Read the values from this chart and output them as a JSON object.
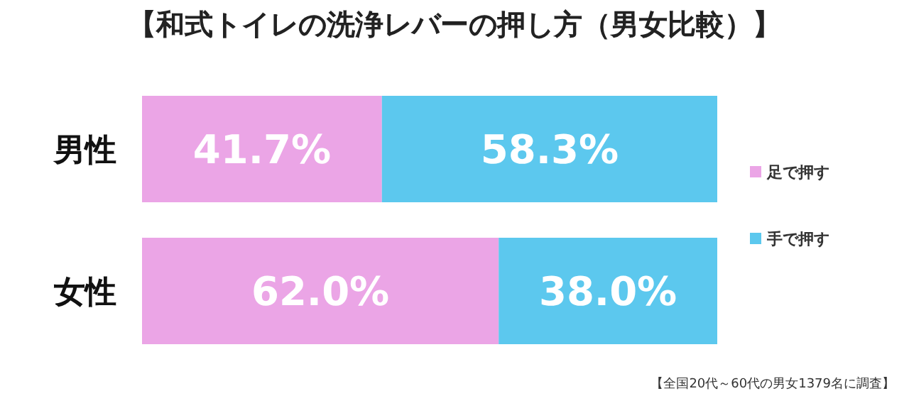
{
  "chart_data": {
    "type": "bar",
    "orientation": "horizontal",
    "stacked": true,
    "title": "【和式トイレの洗浄レバーの押し方（男女比較）】",
    "categories": [
      "男性",
      "女性"
    ],
    "series": [
      {
        "name": "足で押す",
        "color": "#eba5e6",
        "values": [
          41.7,
          62.0
        ],
        "value_labels": [
          "41.7%",
          "62.0%"
        ]
      },
      {
        "name": "手で押す",
        "color": "#5cc8ee",
        "values": [
          58.3,
          38.0
        ],
        "value_labels": [
          "58.3%",
          "38.0%"
        ]
      }
    ],
    "legend": "right",
    "annotations": [
      "【全国20代～60代の男女1379名に調査】"
    ]
  }
}
